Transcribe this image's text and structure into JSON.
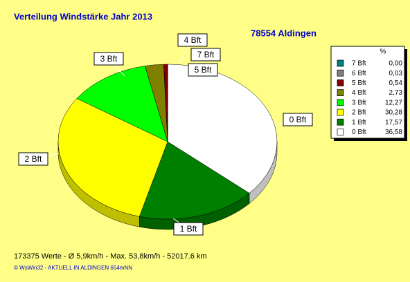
{
  "chart_data": {
    "type": "pie",
    "title": "Verteilung Windstärke  Jahr 2013",
    "subtitle": "78554 Aldingen",
    "legend_header": "%",
    "categories": [
      "7 Bft",
      "6 Bft",
      "5 Bft",
      "4 Bft",
      "3 Bft",
      "2 Bft",
      "1 Bft",
      "0 Bft"
    ],
    "values": [
      0,
      0.03,
      0.54,
      2.73,
      12.27,
      30.28,
      17.57,
      36.58
    ],
    "value_labels": [
      "0,00",
      "0,03",
      "0,54",
      "2,73",
      "12,27",
      "30,28",
      "17,57",
      "36,58"
    ],
    "colors": [
      "#008080",
      "#808080",
      "#800000",
      "#808000",
      "#00ff00",
      "#ffff00",
      "#008000",
      "#ffffff"
    ],
    "legend": "right",
    "footer": "173375 Werte   -   Ø 5,9km/h  -  Max. 53,8km/h   -   52017.6 km",
    "credit": "© WsWin32  -  AKTUELL IN ALDINGEN 654mNN"
  }
}
